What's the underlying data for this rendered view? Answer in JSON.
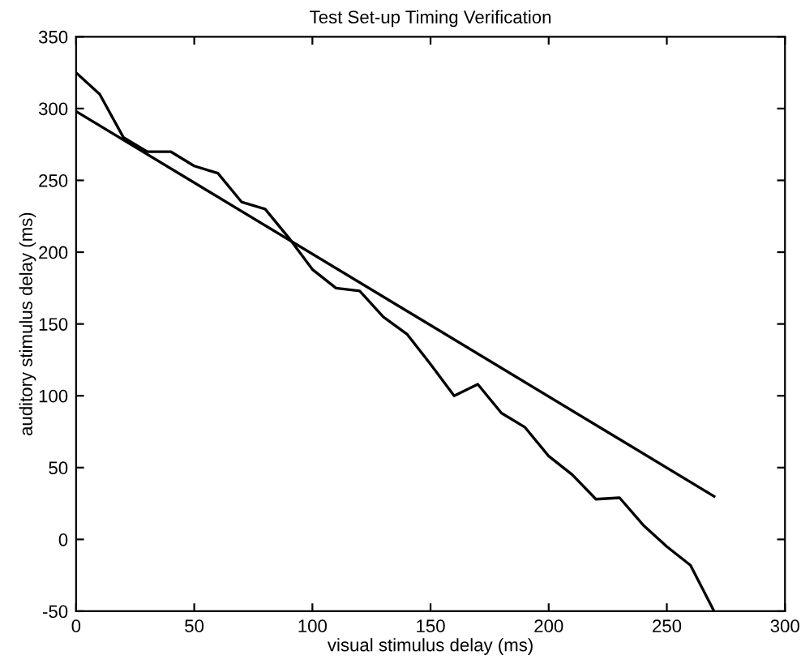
{
  "chart_data": {
    "type": "line",
    "title": "Test Set-up Timing Verification",
    "xlabel": "visual stimulus delay (ms)",
    "ylabel": "auditory stimulus delay (ms)",
    "series": [
      {
        "color": "#000000",
        "x": [
          0,
          10,
          20,
          30,
          40,
          50,
          60,
          70,
          80,
          90,
          100,
          110,
          120,
          130,
          140,
          150,
          160,
          170,
          180,
          190,
          200,
          210,
          220,
          230,
          240,
          250,
          260,
          270
        ],
        "values": [
          325,
          310,
          280,
          270,
          270,
          260,
          255,
          235,
          230,
          210,
          188,
          175,
          173,
          155,
          143,
          122,
          100,
          108,
          88,
          78,
          58,
          45,
          28,
          29,
          10,
          -5,
          -18,
          -50
        ]
      },
      {
        "color": "#000000",
        "x": [
          0,
          270
        ],
        "values": [
          298,
          30
        ]
      }
    ],
    "xlim": [
      0,
      300
    ],
    "ylim": [
      -50,
      350
    ],
    "xticks": [
      0,
      50,
      100,
      150,
      200,
      250,
      300
    ],
    "yticks": [
      -50,
      0,
      50,
      100,
      150,
      200,
      250,
      300,
      350
    ],
    "grid": false
  }
}
